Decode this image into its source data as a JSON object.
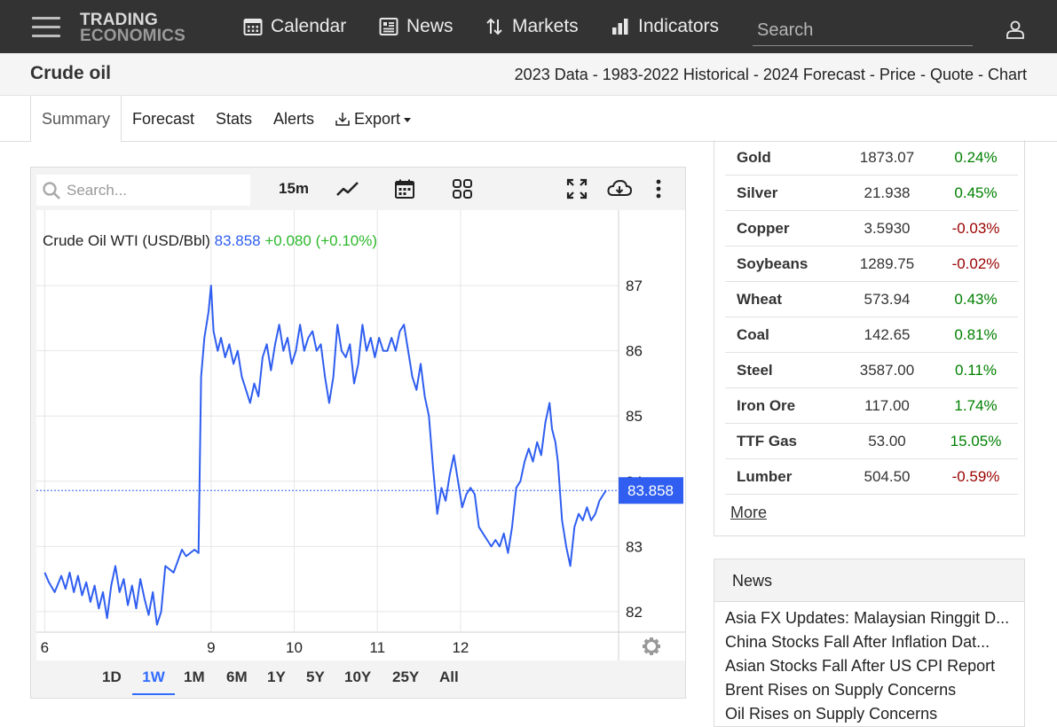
{
  "nav": {
    "logo_line1": "TRADING",
    "logo_line2": "ECONOMICS",
    "items": [
      {
        "label": "Calendar",
        "icon": "calendar-icon"
      },
      {
        "label": "News",
        "icon": "news-icon"
      },
      {
        "label": "Markets",
        "icon": "markets-icon"
      },
      {
        "label": "Indicators",
        "icon": "bar-chart-icon"
      }
    ],
    "search_placeholder": "Search"
  },
  "header": {
    "title": "Crude oil",
    "links": [
      "2023 Data",
      "1983-2022 Historical",
      "2024 Forecast",
      "Price",
      "Quote",
      "Chart"
    ],
    "separator": "-"
  },
  "tabs": [
    "Summary",
    "Forecast",
    "Stats",
    "Alerts",
    "Export"
  ],
  "chart_widget": {
    "search_placeholder": "Search...",
    "interval": "15m",
    "ranges": [
      "1D",
      "1W",
      "1M",
      "6M",
      "1Y",
      "5Y",
      "10Y",
      "25Y",
      "All"
    ],
    "active_range": "1W",
    "legend_name": "Crude Oil WTI (USD/Bbl)",
    "legend_price": "83.858",
    "legend_change": "+0.080 (+0.10%)",
    "price_tag": "83.858",
    "line_color": "#2f5ef0",
    "pos_color": "#2cb82c"
  },
  "chart_data": {
    "type": "line",
    "series": [
      {
        "name": "Crude Oil WTI (USD/Bbl)",
        "points": [
          [
            0.0,
            82.6
          ],
          [
            0.05,
            82.45
          ],
          [
            0.12,
            82.3
          ],
          [
            0.2,
            82.55
          ],
          [
            0.25,
            82.35
          ],
          [
            0.3,
            82.6
          ],
          [
            0.35,
            82.3
          ],
          [
            0.4,
            82.55
          ],
          [
            0.45,
            82.25
          ],
          [
            0.5,
            82.45
          ],
          [
            0.55,
            82.15
          ],
          [
            0.6,
            82.4
          ],
          [
            0.65,
            82.05
          ],
          [
            0.7,
            82.3
          ],
          [
            0.75,
            81.9
          ],
          [
            0.8,
            82.4
          ],
          [
            0.85,
            82.7
          ],
          [
            0.9,
            82.3
          ],
          [
            0.95,
            82.5
          ],
          [
            1.0,
            82.1
          ],
          [
            1.05,
            82.4
          ],
          [
            1.1,
            82.05
          ],
          [
            1.15,
            82.5
          ],
          [
            1.2,
            82.2
          ],
          [
            1.25,
            81.95
          ],
          [
            1.3,
            82.3
          ],
          [
            1.35,
            81.8
          ],
          [
            1.4,
            82.0
          ],
          [
            1.45,
            82.7
          ],
          [
            1.55,
            82.6
          ],
          [
            1.65,
            82.95
          ],
          [
            1.7,
            82.85
          ],
          [
            1.8,
            82.95
          ],
          [
            1.85,
            82.9
          ],
          [
            1.88,
            85.6
          ],
          [
            1.92,
            86.2
          ],
          [
            1.97,
            86.6
          ],
          [
            2.0,
            87.0
          ],
          [
            2.03,
            86.3
          ],
          [
            2.08,
            86.0
          ],
          [
            2.12,
            86.2
          ],
          [
            2.17,
            85.9
          ],
          [
            2.22,
            86.1
          ],
          [
            2.27,
            85.8
          ],
          [
            2.32,
            86.0
          ],
          [
            2.37,
            85.6
          ],
          [
            2.42,
            85.4
          ],
          [
            2.47,
            85.2
          ],
          [
            2.52,
            85.5
          ],
          [
            2.57,
            85.3
          ],
          [
            2.62,
            85.9
          ],
          [
            2.67,
            86.1
          ],
          [
            2.72,
            85.7
          ],
          [
            2.77,
            86.1
          ],
          [
            2.82,
            86.4
          ],
          [
            2.87,
            86.0
          ],
          [
            2.92,
            86.2
          ],
          [
            2.97,
            85.8
          ],
          [
            3.02,
            86.0
          ],
          [
            3.07,
            86.4
          ],
          [
            3.12,
            86.0
          ],
          [
            3.17,
            86.2
          ],
          [
            3.22,
            86.3
          ],
          [
            3.27,
            86.0
          ],
          [
            3.32,
            86.1
          ],
          [
            3.37,
            85.6
          ],
          [
            3.42,
            85.2
          ],
          [
            3.47,
            85.6
          ],
          [
            3.52,
            86.4
          ],
          [
            3.57,
            86.0
          ],
          [
            3.62,
            85.9
          ],
          [
            3.67,
            86.1
          ],
          [
            3.72,
            85.5
          ],
          [
            3.77,
            85.8
          ],
          [
            3.82,
            86.4
          ],
          [
            3.87,
            86.0
          ],
          [
            3.92,
            86.2
          ],
          [
            3.97,
            85.9
          ],
          [
            4.02,
            86.2
          ],
          [
            4.07,
            86.0
          ],
          [
            4.12,
            86.0
          ],
          [
            4.17,
            86.2
          ],
          [
            4.22,
            86.0
          ],
          [
            4.27,
            86.3
          ],
          [
            4.32,
            86.4
          ],
          [
            4.37,
            86.0
          ],
          [
            4.42,
            85.6
          ],
          [
            4.47,
            85.4
          ],
          [
            4.52,
            85.8
          ],
          [
            4.57,
            85.3
          ],
          [
            4.62,
            85.0
          ],
          [
            4.67,
            84.2
          ],
          [
            4.72,
            83.5
          ],
          [
            4.77,
            83.9
          ],
          [
            4.82,
            83.7
          ],
          [
            4.87,
            84.1
          ],
          [
            4.92,
            84.4
          ],
          [
            4.97,
            84.0
          ],
          [
            5.02,
            83.6
          ],
          [
            5.07,
            83.8
          ],
          [
            5.12,
            83.9
          ],
          [
            5.17,
            83.8
          ],
          [
            5.22,
            83.3
          ],
          [
            5.27,
            83.2
          ],
          [
            5.32,
            83.1
          ],
          [
            5.37,
            83.0
          ],
          [
            5.42,
            83.1
          ],
          [
            5.47,
            83.0
          ],
          [
            5.52,
            83.2
          ],
          [
            5.57,
            82.9
          ],
          [
            5.62,
            83.3
          ],
          [
            5.67,
            83.9
          ],
          [
            5.72,
            84.0
          ],
          [
            5.77,
            84.3
          ],
          [
            5.82,
            84.5
          ],
          [
            5.87,
            84.3
          ],
          [
            5.92,
            84.6
          ],
          [
            5.97,
            84.4
          ],
          [
            6.02,
            84.9
          ],
          [
            6.07,
            85.2
          ],
          [
            6.1,
            84.8
          ],
          [
            6.14,
            84.6
          ],
          [
            6.17,
            84.3
          ],
          [
            6.22,
            83.4
          ],
          [
            6.27,
            83.0
          ],
          [
            6.32,
            82.7
          ],
          [
            6.37,
            83.3
          ],
          [
            6.42,
            83.5
          ],
          [
            6.47,
            83.4
          ],
          [
            6.52,
            83.6
          ],
          [
            6.57,
            83.4
          ],
          [
            6.62,
            83.5
          ],
          [
            6.67,
            83.7
          ],
          [
            6.72,
            83.8
          ],
          [
            6.75,
            83.86
          ]
        ]
      }
    ],
    "x_ticks": [
      {
        "v": 0.0,
        "label": "6"
      },
      {
        "v": 2.0,
        "label": "9"
      },
      {
        "v": 3.0,
        "label": "10"
      },
      {
        "v": 4.0,
        "label": "11"
      },
      {
        "v": 5.0,
        "label": "12"
      }
    ],
    "y_ticks": [
      82,
      83,
      84,
      85,
      86,
      87
    ],
    "ylim": [
      81.7,
      87.45
    ],
    "xlim": [
      -0.1,
      6.9
    ],
    "last_value": 83.858,
    "grid": true
  },
  "commodities": [
    {
      "name": "Gold",
      "price": "1873.07",
      "change": "0.24%",
      "dir": "pos"
    },
    {
      "name": "Silver",
      "price": "21.938",
      "change": "0.45%",
      "dir": "pos"
    },
    {
      "name": "Copper",
      "price": "3.5930",
      "change": "-0.03%",
      "dir": "neg"
    },
    {
      "name": "Soybeans",
      "price": "1289.75",
      "change": "-0.02%",
      "dir": "neg"
    },
    {
      "name": "Wheat",
      "price": "573.94",
      "change": "0.43%",
      "dir": "pos"
    },
    {
      "name": "Coal",
      "price": "142.65",
      "change": "0.81%",
      "dir": "pos"
    },
    {
      "name": "Steel",
      "price": "3587.00",
      "change": "0.11%",
      "dir": "pos"
    },
    {
      "name": "Iron Ore",
      "price": "117.00",
      "change": "1.74%",
      "dir": "pos"
    },
    {
      "name": "TTF Gas",
      "price": "53.00",
      "change": "15.05%",
      "dir": "pos"
    },
    {
      "name": "Lumber",
      "price": "504.50",
      "change": "-0.59%",
      "dir": "neg"
    }
  ],
  "more_label": "More",
  "news": {
    "title": "News",
    "items": [
      "Asia FX Updates: Malaysian Ringgit D...",
      "China Stocks Fall After Inflation Dat...",
      "Asian Stocks Fall After US CPI Report",
      "Brent Rises on Supply Concerns",
      "Oil Rises on Supply Concerns"
    ]
  }
}
